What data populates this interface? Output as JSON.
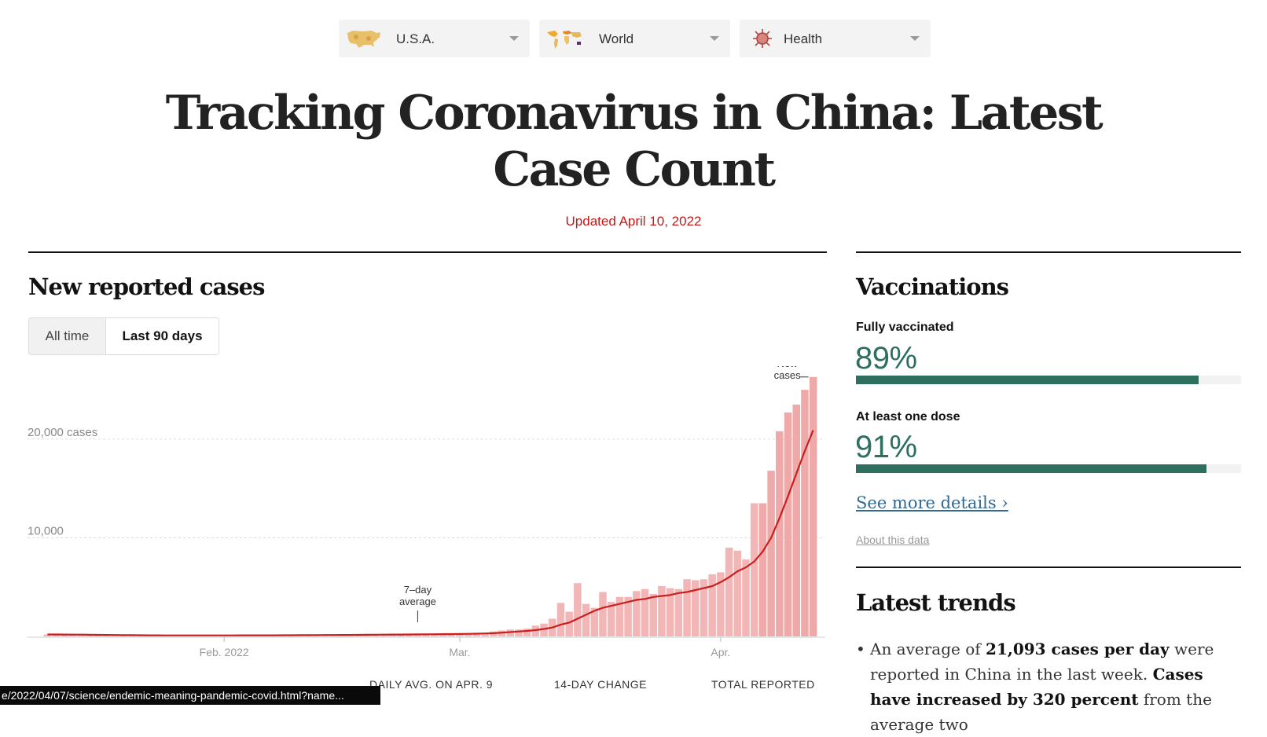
{
  "nav": {
    "dropdowns": [
      {
        "label": "U.S.A.",
        "icon": "usa-map-icon"
      },
      {
        "label": "World",
        "icon": "world-map-icon"
      },
      {
        "label": "Health",
        "icon": "virus-icon"
      }
    ]
  },
  "headline": {
    "line1": "Tracking Coronavirus in China: Latest",
    "line2": "Case Count",
    "updated": "Updated April 10, 2022"
  },
  "cases": {
    "title": "New reported cases",
    "toggle": {
      "all_time": "All time",
      "last_90": "Last 90 days",
      "selected": "Last 90 days"
    },
    "stats_labels": {
      "daily_avg": "DAILY AVG. ON APR. 9",
      "change": "14-DAY CHANGE",
      "total": "TOTAL REPORTED"
    }
  },
  "colors": {
    "bar": "#f3b6b6",
    "avg_line": "#c91f1f",
    "vaccine": "#2e6f5f",
    "updated_red": "#c01a1a",
    "link": "#326891"
  },
  "chart_data": {
    "type": "bar",
    "title": "New reported cases",
    "ylabel": "",
    "xlabel": "",
    "ylim": [
      0,
      27000
    ],
    "y_ticks": [
      {
        "value": 10000,
        "label": "10,000"
      },
      {
        "value": 20000,
        "label": "20,000 cases"
      }
    ],
    "x_ticks": [
      {
        "day": 21,
        "label": "Feb. 2022"
      },
      {
        "day": 49,
        "label": "Mar."
      },
      {
        "day": 80,
        "label": "Apr."
      }
    ],
    "annotations": {
      "avg_line1": "7–day",
      "avg_line2": "average",
      "avg_day": 44,
      "new_line1": "New",
      "new_line2": "cases"
    },
    "series": [
      {
        "name": "New cases",
        "values": [
          200,
          180,
          170,
          160,
          150,
          140,
          130,
          130,
          120,
          110,
          110,
          100,
          100,
          100,
          90,
          90,
          90,
          100,
          100,
          100,
          110,
          110,
          110,
          120,
          110,
          110,
          110,
          120,
          120,
          130,
          130,
          140,
          140,
          150,
          150,
          160,
          170,
          170,
          180,
          190,
          190,
          200,
          200,
          210,
          220,
          220,
          230,
          240,
          250,
          260,
          280,
          300,
          350,
          500,
          600,
          700,
          700,
          800,
          1100,
          1300,
          1800,
          3400,
          2500,
          5400,
          3300,
          2900,
          4500,
          3500,
          4000,
          4000,
          4600,
          4800,
          4300,
          5100,
          4900,
          4800,
          5800,
          5700,
          5800,
          6300,
          6500,
          9000,
          8700,
          7800,
          13500,
          13500,
          16800,
          20800,
          22700,
          23500,
          25000,
          26300
        ]
      },
      {
        "name": "7–day average",
        "values": [
          200,
          200,
          190,
          185,
          180,
          170,
          160,
          150,
          140,
          130,
          125,
          120,
          115,
          110,
          105,
          100,
          100,
          100,
          100,
          100,
          100,
          105,
          105,
          110,
          110,
          110,
          115,
          115,
          120,
          120,
          125,
          130,
          135,
          140,
          145,
          150,
          155,
          160,
          170,
          175,
          180,
          190,
          195,
          200,
          210,
          215,
          220,
          230,
          240,
          250,
          265,
          280,
          300,
          330,
          380,
          440,
          500,
          560,
          640,
          760,
          900,
          1200,
          1400,
          1800,
          2200,
          2600,
          2900,
          3100,
          3300,
          3500,
          3700,
          3800,
          4000,
          4100,
          4200,
          4400,
          4500,
          4700,
          4900,
          5100,
          5500,
          6000,
          6600,
          7000,
          7600,
          8600,
          10000,
          12000,
          14200,
          16500,
          18800,
          20900
        ]
      }
    ]
  },
  "vaccinations": {
    "title": "Vaccinations",
    "fully_label": "Fully vaccinated",
    "fully_pct": "89%",
    "fully_value": 0.89,
    "one_dose_label": "At least one dose",
    "one_dose_pct": "91%",
    "one_dose_value": 0.91,
    "more_link": "See more details ›",
    "about_link": "About this data"
  },
  "trends": {
    "title": "Latest trends",
    "bullet": "•",
    "t1": "An average of ",
    "b1": "21,093 cases per day",
    "t2": " were reported in China in the last week. ",
    "b2": "Cases have increased by 320 percent",
    "t3": " from the average two"
  },
  "status_bar": {
    "url": "e/2022/04/07/science/endemic-meaning-pandemic-covid.html?name..."
  }
}
